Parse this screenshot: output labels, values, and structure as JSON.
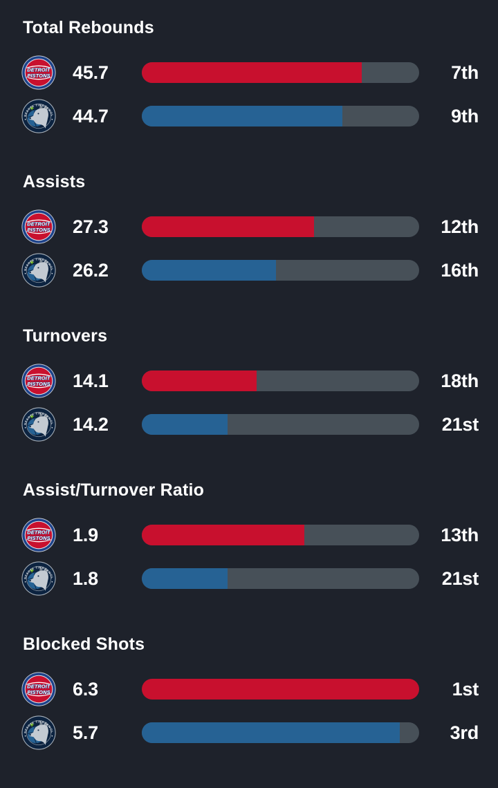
{
  "theme": {
    "background": "#1e222b",
    "track_color": "#475058",
    "text_color": "#ffffff",
    "pistons_color": "#c8102e",
    "timberwolves_color": "#266294",
    "pistons_logo_blue": "#1d428a",
    "timberwolves_logo_navy": "#0c2340",
    "timberwolves_logo_green": "#78be20"
  },
  "teams": {
    "pistons": {
      "name": "Detroit Pistons",
      "logo_lines": [
        "DETROIT",
        "PISTONS"
      ]
    },
    "timberwolves": {
      "name": "Minnesota Timberwolves",
      "logo_arc_text": "MINNESOTA TIMBERWOLVES"
    }
  },
  "chart_data": {
    "type": "bar",
    "orientation": "horizontal",
    "teams": [
      "Detroit Pistons",
      "Minnesota Timberwolves"
    ],
    "bar_scale": "fill_pct = (30 - league_rank) / 29 * 100, of 30 NBA teams",
    "sections": [
      {
        "title": "Total Rebounds",
        "rows": [
          {
            "team": "pistons",
            "value": "45.7",
            "rank": "7th",
            "fill_pct": 79.3
          },
          {
            "team": "timberwolves",
            "value": "44.7",
            "rank": "9th",
            "fill_pct": 72.4
          }
        ]
      },
      {
        "title": "Assists",
        "rows": [
          {
            "team": "pistons",
            "value": "27.3",
            "rank": "12th",
            "fill_pct": 62.1
          },
          {
            "team": "timberwolves",
            "value": "26.2",
            "rank": "16th",
            "fill_pct": 48.3
          }
        ]
      },
      {
        "title": "Turnovers",
        "rows": [
          {
            "team": "pistons",
            "value": "14.1",
            "rank": "18th",
            "fill_pct": 41.4
          },
          {
            "team": "timberwolves",
            "value": "14.2",
            "rank": "21st",
            "fill_pct": 31.0
          }
        ]
      },
      {
        "title": "Assist/Turnover Ratio",
        "rows": [
          {
            "team": "pistons",
            "value": "1.9",
            "rank": "13th",
            "fill_pct": 58.6
          },
          {
            "team": "timberwolves",
            "value": "1.8",
            "rank": "21st",
            "fill_pct": 31.0
          }
        ]
      },
      {
        "title": "Blocked Shots",
        "rows": [
          {
            "team": "pistons",
            "value": "6.3",
            "rank": "1st",
            "fill_pct": 100
          },
          {
            "team": "timberwolves",
            "value": "5.7",
            "rank": "3rd",
            "fill_pct": 93.1
          }
        ]
      }
    ]
  }
}
